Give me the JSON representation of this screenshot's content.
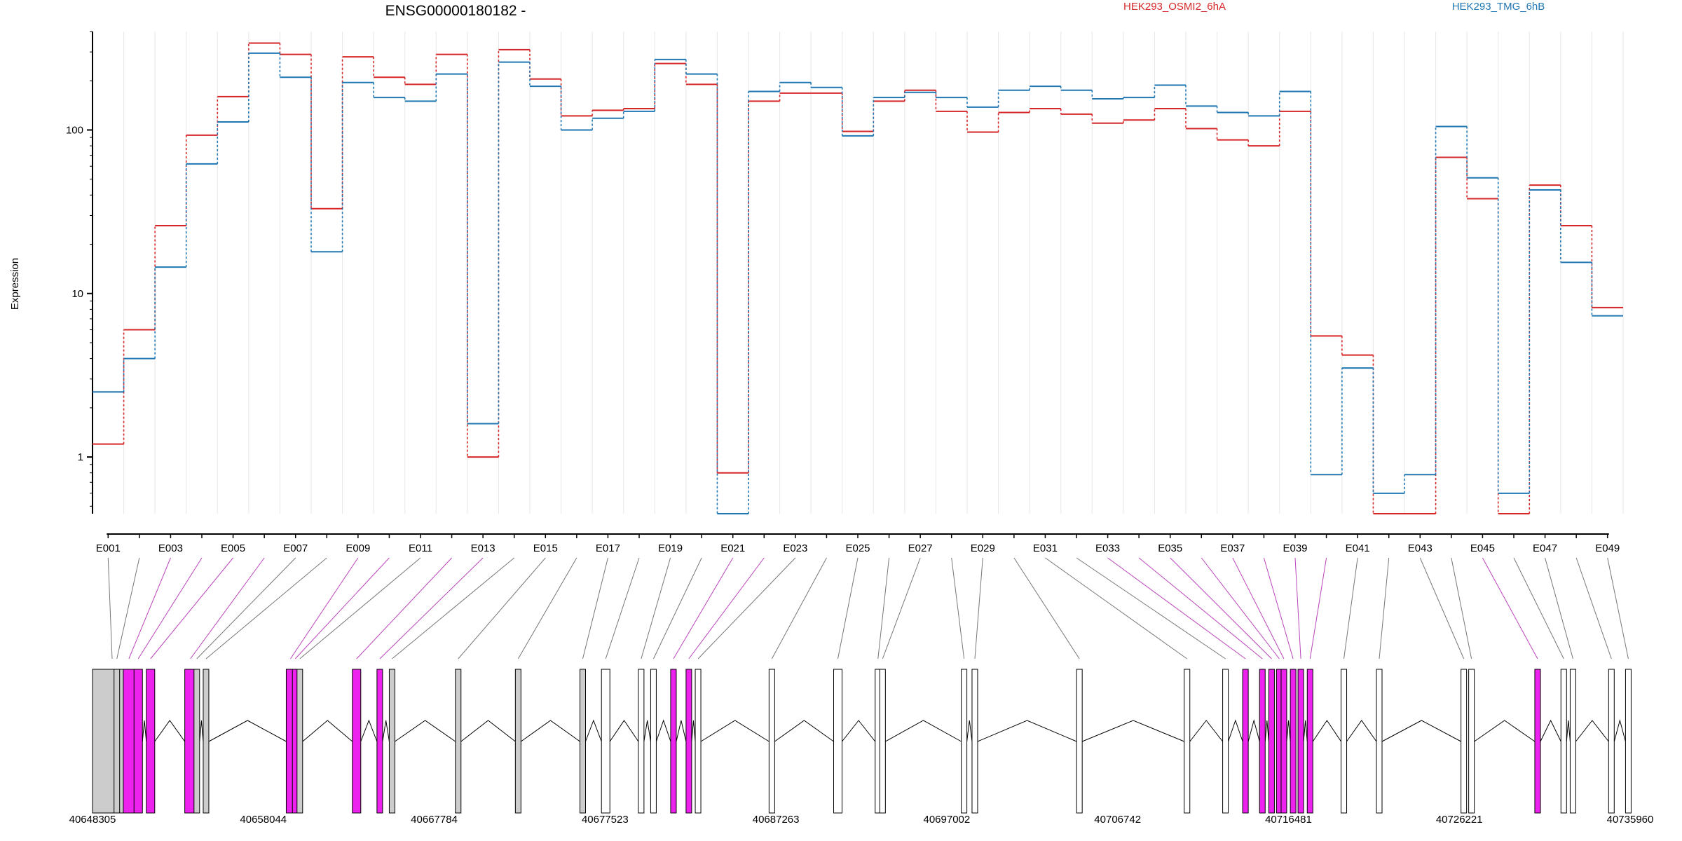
{
  "colors": {
    "series_a": "#d62728",
    "series_b": "#1f77b4",
    "magenta": "#ee22ee",
    "grey": "#cccccc",
    "axis": "#000000",
    "grid": "#e6e6e6"
  },
  "chart_data": {
    "type": "line",
    "title": "ENSG00000180182 -",
    "ylabel": "Expression",
    "yscale": "log",
    "ylim": [
      0.45,
      400
    ],
    "yticks": [
      1,
      10,
      100
    ],
    "ytick_labels": [
      "1",
      "10",
      "100"
    ],
    "legend_placement": "top",
    "grid": true,
    "categories": [
      "E001",
      "E002",
      "E003",
      "E004",
      "E005",
      "E006",
      "E007",
      "E008",
      "E009",
      "E010",
      "E011",
      "E012",
      "E013",
      "E014",
      "E015",
      "E016",
      "E017",
      "E018",
      "E019",
      "E020",
      "E021",
      "E022",
      "E023",
      "E024",
      "E025",
      "E026",
      "E027",
      "E028",
      "E029",
      "E030",
      "E031",
      "E032",
      "E033",
      "E034",
      "E035",
      "E036",
      "E037",
      "E038",
      "E039",
      "E040",
      "E041",
      "E042",
      "E043",
      "E044",
      "E045",
      "E046",
      "E047",
      "E048",
      "E049"
    ],
    "series": [
      {
        "name": "HEK293_OSMI2_6hA",
        "color": "#d62728",
        "values": [
          1.2,
          6,
          26,
          93,
          160,
          340,
          290,
          33,
          280,
          210,
          190,
          290,
          1.0,
          310,
          205,
          122,
          132,
          135,
          255,
          190,
          0.8,
          150,
          168,
          168,
          98,
          150,
          175,
          130,
          97,
          128,
          135,
          125,
          110,
          115,
          135,
          102,
          87,
          80,
          130,
          5.5,
          4.2,
          0.45,
          0.45,
          68,
          38,
          0.45,
          46,
          26,
          8.2
        ]
      },
      {
        "name": "HEK293_TMG_6hB",
        "color": "#1f77b4",
        "values": [
          2.5,
          4,
          14.5,
          62,
          112,
          295,
          210,
          18,
          195,
          158,
          150,
          220,
          1.6,
          260,
          185,
          100,
          118,
          130,
          270,
          220,
          0.45,
          172,
          195,
          182,
          92,
          158,
          170,
          158,
          138,
          175,
          185,
          175,
          155,
          158,
          188,
          140,
          128,
          122,
          172,
          0.78,
          3.5,
          0.6,
          0.78,
          105,
          51,
          0.6,
          43,
          15.5,
          7.3
        ]
      }
    ],
    "xtick_labels": [
      "E001",
      "E003",
      "E005",
      "E007",
      "E009",
      "E011",
      "E013",
      "E015",
      "E017",
      "E019",
      "E021",
      "E023",
      "E025",
      "E027",
      "E029",
      "E031",
      "E033",
      "E035",
      "E037",
      "E039",
      "E041",
      "E043",
      "E045",
      "E047",
      "E049"
    ],
    "gene_model": {
      "coordinate_labels": [
        "40648305",
        "40658044",
        "40667784",
        "40677523",
        "40687263",
        "40697002",
        "40706742",
        "40716481",
        "40726221",
        "40735960"
      ],
      "coordinate_range": [
        40648305,
        40735960
      ],
      "exon_fill": [
        "grey",
        "grey",
        "magenta",
        "magenta",
        "magenta",
        "magenta",
        "grey",
        "grey",
        "magenta",
        "magenta",
        "grey",
        "magenta",
        "magenta",
        "grey",
        "grey",
        "grey",
        "grey",
        "white",
        "white",
        "white",
        "magenta",
        "magenta",
        "white",
        "white",
        "white",
        "white",
        "white",
        "white",
        "white",
        "white",
        "white",
        "white",
        "magenta",
        "magenta",
        "magenta",
        "magenta",
        "magenta",
        "magenta",
        "magenta",
        "magenta",
        "white",
        "white",
        "white",
        "white",
        "magenta",
        "white",
        "white",
        "white",
        "white"
      ]
    }
  }
}
